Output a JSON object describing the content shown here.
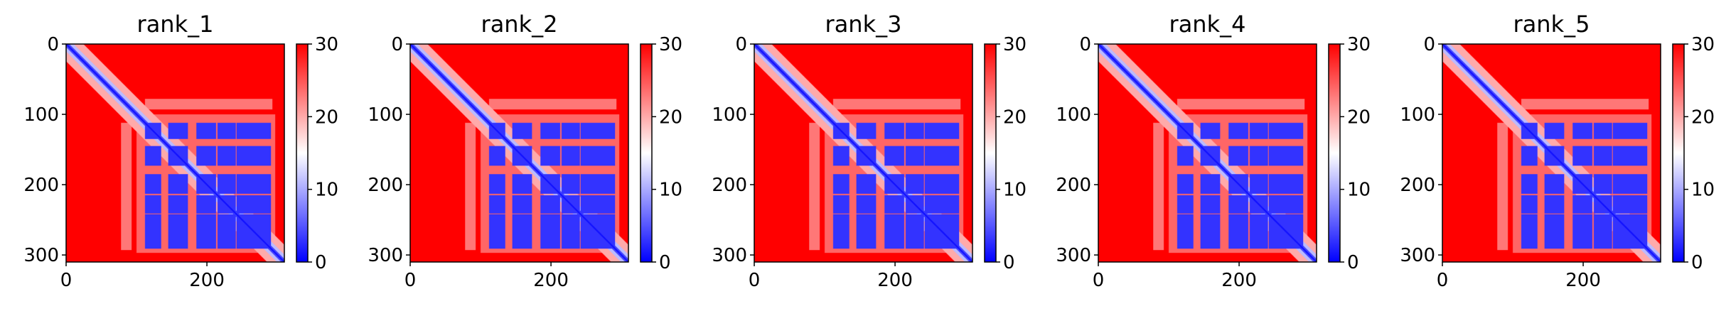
{
  "chart_data": {
    "type": "heatmap",
    "colormap": "bwr",
    "colors": {
      "low": "#0000ff",
      "mid": "#ffffff",
      "high": "#ff0000"
    },
    "vmin": 0,
    "vmax": 30,
    "size": 310,
    "xlim": [
      0,
      310
    ],
    "ylim": [
      310,
      0
    ],
    "xticks": [
      "0",
      "200"
    ],
    "yticks": [
      "0",
      "100",
      "200",
      "300"
    ],
    "colorbar_ticks": [
      "0",
      "10",
      "20",
      "30"
    ],
    "domains": [
      [
        112,
        134
      ],
      [
        145,
        172
      ],
      [
        185,
        212
      ],
      [
        215,
        240
      ],
      [
        242,
        290
      ]
    ],
    "panels": [
      {
        "title": "rank_1"
      },
      {
        "title": "rank_2"
      },
      {
        "title": "rank_3"
      },
      {
        "title": "rank_4"
      },
      {
        "title": "rank_5"
      }
    ]
  }
}
